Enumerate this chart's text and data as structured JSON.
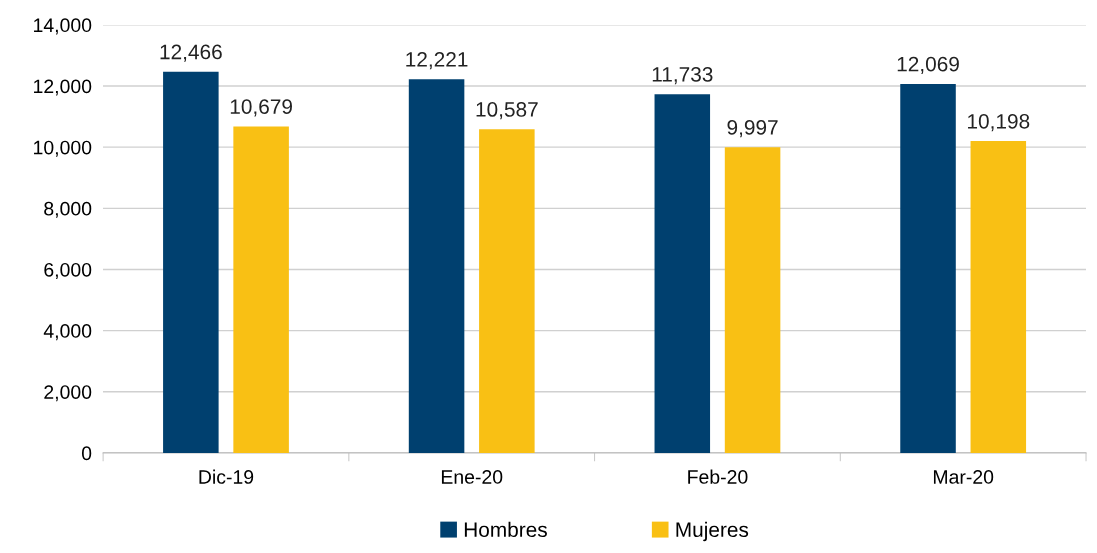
{
  "chart_data": {
    "type": "bar",
    "categories": [
      "Dic-19",
      "Ene-20",
      "Feb-20",
      "Mar-20"
    ],
    "series": [
      {
        "name": "Hombres",
        "color": "#00406f",
        "values": [
          12466,
          12221,
          11733,
          12069
        ],
        "value_labels": [
          "12,466",
          "12,221",
          "11,733",
          "12,069"
        ]
      },
      {
        "name": "Mujeres",
        "color": "#f9c014",
        "values": [
          10679,
          10587,
          9997,
          10198
        ],
        "value_labels": [
          "10,679",
          "10,587",
          "9,997",
          "10,198"
        ]
      }
    ],
    "ylim": [
      0,
      14000
    ],
    "yticks": [
      0,
      {
        "value": 2000,
        "label": "2,000"
      },
      {
        "value": 4000,
        "label": "4,000"
      },
      {
        "value": 6000,
        "label": "6,000"
      },
      {
        "value": 8000,
        "label": "8,000"
      },
      {
        "value": 10000,
        "label": "10,000"
      },
      {
        "value": 12000,
        "label": "12,000"
      },
      {
        "value": 14000,
        "label": "14,000"
      }
    ],
    "grid": "y",
    "legend": "bottom"
  }
}
